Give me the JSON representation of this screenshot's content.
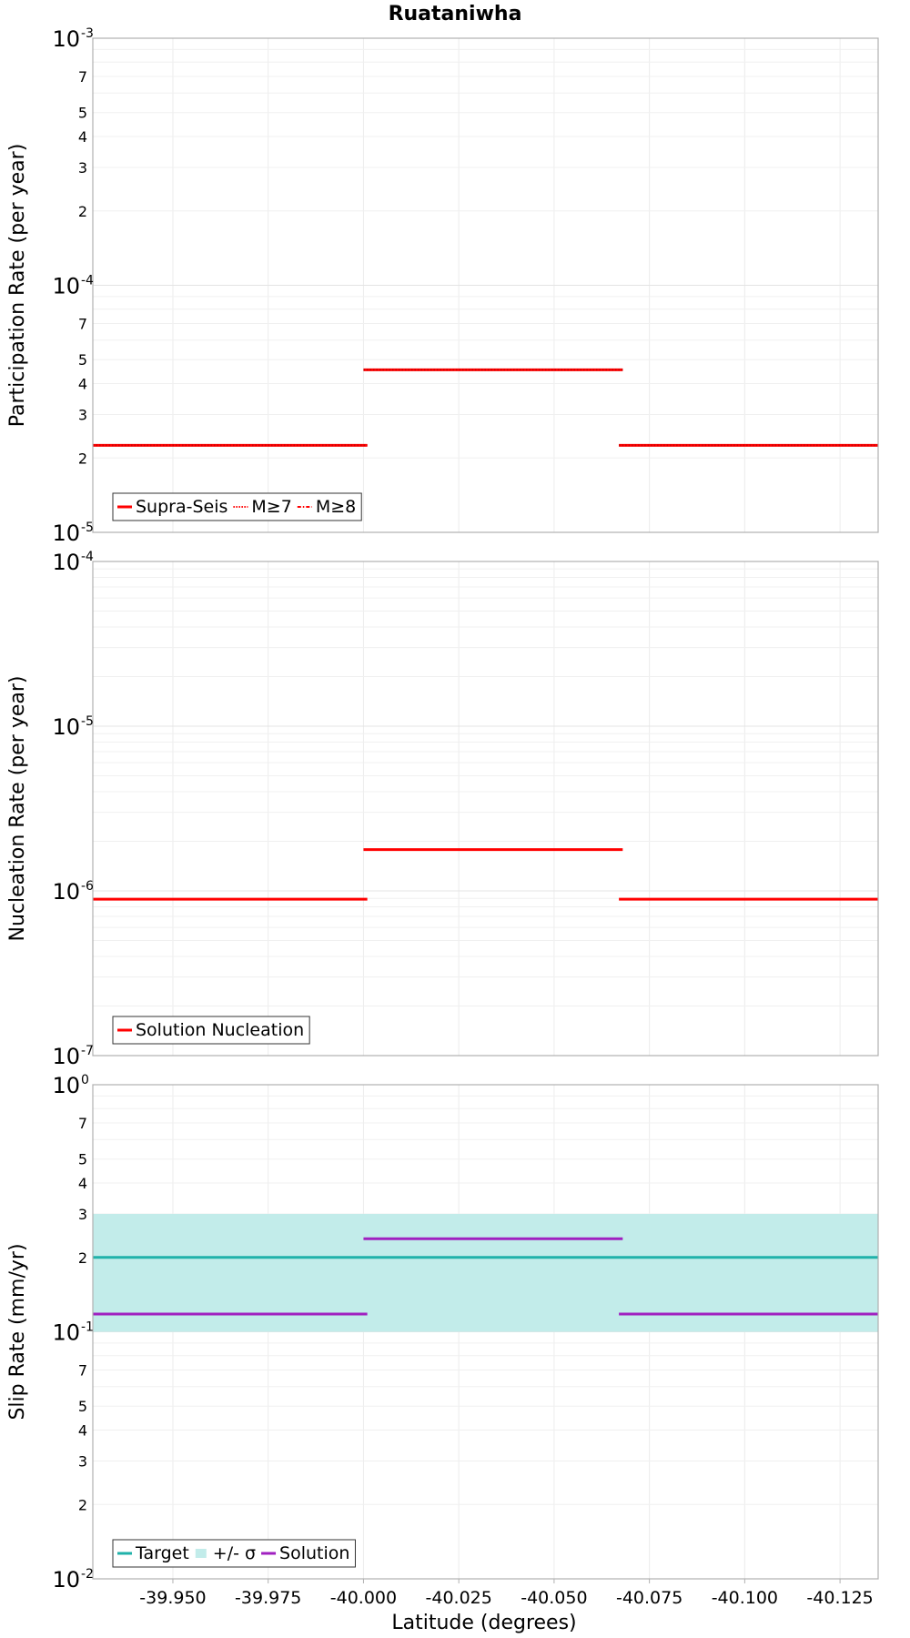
{
  "title": "Ruataniwha",
  "x_axis": {
    "label": "Latitude (degrees)",
    "range": [
      -39.929,
      -40.135
    ],
    "ticks": [
      -39.95,
      -39.975,
      -40.0,
      -40.025,
      -40.05,
      -40.075,
      -40.1,
      -40.125
    ],
    "tick_labels": [
      "-39.950",
      "-39.975",
      "-40.000",
      "-40.025",
      "-40.050",
      "-40.075",
      "-40.100",
      "-40.125"
    ]
  },
  "colors": {
    "red": "#ff0000",
    "teal": "#20b2aa",
    "band": "#c2ecea",
    "purple": "#a020c0"
  },
  "chart_data": [
    {
      "type": "line",
      "name": "participation",
      "ylabel": "Participation Rate (per year)",
      "yscale": "log",
      "ylim": [
        1e-05,
        0.001
      ],
      "major_exponents": [
        -5,
        -4,
        -3
      ],
      "minor_labels": [
        "2",
        "3",
        "4",
        "5",
        "7"
      ],
      "series": [
        {
          "name": "Supra-Seis",
          "style": "solid",
          "color": "#ff0000",
          "segments": [
            {
              "x": [
                -39.929,
                -40.001
              ],
              "y": 2.25e-05
            },
            {
              "x": [
                -40.0,
                -40.068
              ],
              "y": 4.55e-05
            },
            {
              "x": [
                -40.067,
                -40.135
              ],
              "y": 2.25e-05
            }
          ]
        },
        {
          "name": "M≥7",
          "style": "dotted",
          "color": "#ff0000",
          "segments": [
            {
              "x": [
                -39.929,
                -40.001
              ],
              "y": 2.25e-05
            },
            {
              "x": [
                -40.0,
                -40.068
              ],
              "y": 4.55e-05
            },
            {
              "x": [
                -40.067,
                -40.135
              ],
              "y": 2.25e-05
            }
          ]
        },
        {
          "name": "M≥8",
          "style": "dashdot",
          "color": "#ff0000",
          "segments": []
        }
      ],
      "legend": [
        "Supra-Seis",
        "M≥7",
        "M≥8"
      ],
      "legend_position": "bottom-left"
    },
    {
      "type": "line",
      "name": "nucleation",
      "ylabel": "Nucleation Rate (per year)",
      "yscale": "log",
      "ylim": [
        1e-07,
        0.0001
      ],
      "major_exponents": [
        -7,
        -6,
        -5,
        -4
      ],
      "minor_labels": [],
      "series": [
        {
          "name": "Solution Nucleation",
          "style": "solid",
          "color": "#ff0000",
          "segments": [
            {
              "x": [
                -39.929,
                -40.001
              ],
              "y": 8.9e-07
            },
            {
              "x": [
                -40.0,
                -40.068
              ],
              "y": 1.78e-06
            },
            {
              "x": [
                -40.067,
                -40.135
              ],
              "y": 8.9e-07
            }
          ]
        }
      ],
      "legend": [
        "Solution Nucleation"
      ],
      "legend_position": "bottom-left"
    },
    {
      "type": "line",
      "name": "slip",
      "ylabel": "Slip Rate (mm/yr)",
      "yscale": "log",
      "ylim": [
        0.01,
        1
      ],
      "major_exponents": [
        -2,
        -1,
        0
      ],
      "minor_labels": [
        "2",
        "3",
        "4",
        "5",
        "7"
      ],
      "band": {
        "name": "+/- σ",
        "low": 0.1,
        "high": 0.3,
        "color": "#c2ecea"
      },
      "series": [
        {
          "name": "Target",
          "style": "solid",
          "color": "#20b2aa",
          "segments": [
            {
              "x": [
                -39.929,
                -40.135
              ],
              "y": 0.2
            }
          ]
        },
        {
          "name": "Solution",
          "style": "solid",
          "color": "#a020c0",
          "segments": [
            {
              "x": [
                -39.929,
                -40.001
              ],
              "y": 0.118
            },
            {
              "x": [
                -40.0,
                -40.068
              ],
              "y": 0.238
            },
            {
              "x": [
                -40.067,
                -40.135
              ],
              "y": 0.118
            }
          ]
        }
      ],
      "legend": [
        "Target",
        "+/- σ",
        "Solution"
      ],
      "legend_position": "bottom-left"
    }
  ]
}
